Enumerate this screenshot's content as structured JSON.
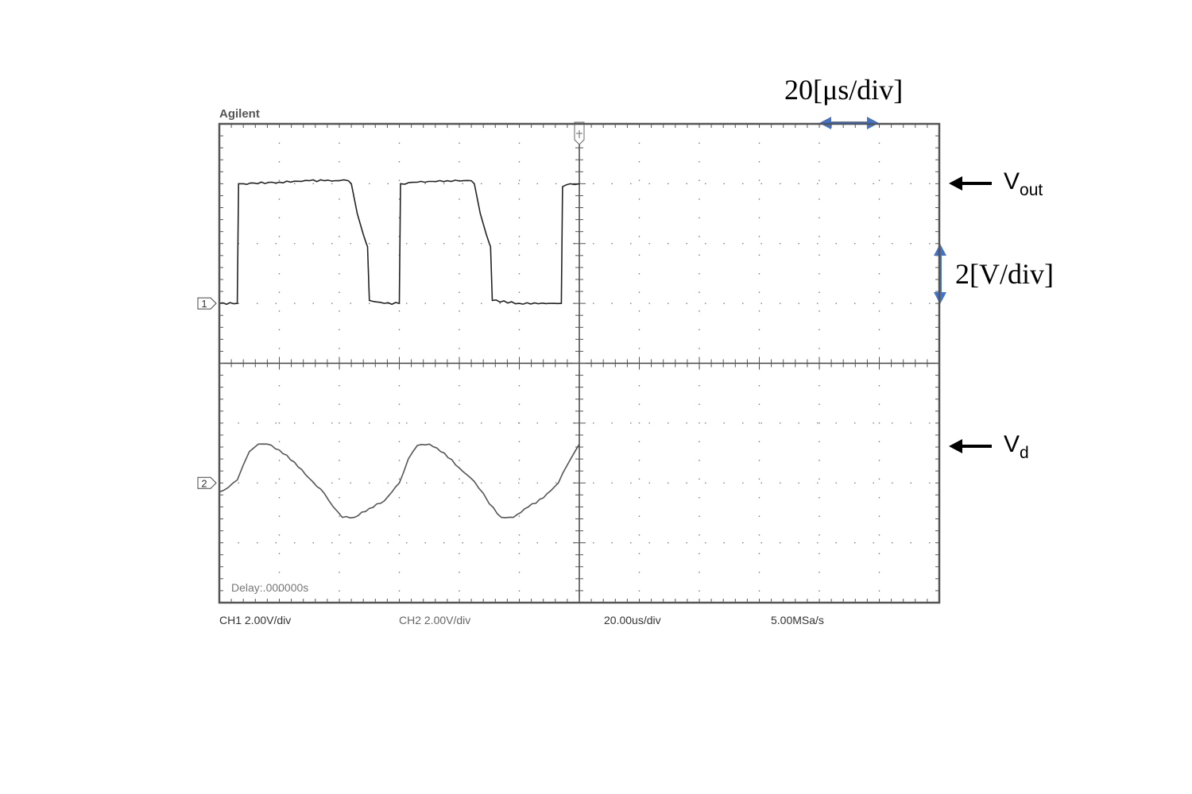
{
  "chart_data": {
    "type": "line",
    "brand": "Agilent",
    "grid": {
      "divisions_x": 12,
      "divisions_y": 8
    },
    "time_per_div_us": 20,
    "channels": [
      {
        "id": "CH1",
        "marker": "1",
        "scale_label": "CH1 2.00V/div",
        "volts_per_div": 2,
        "ground_div_from_top": 3,
        "trace_color": "#222222",
        "points": [
          [
            0,
            0.0
          ],
          [
            6,
            0.0
          ],
          [
            6.4,
            4.0
          ],
          [
            8,
            4.0
          ],
          [
            20,
            4.05
          ],
          [
            30,
            4.1
          ],
          [
            35,
            4.1
          ],
          [
            40,
            4.1
          ],
          [
            43,
            4.1
          ],
          [
            44,
            4.0
          ],
          [
            46,
            3.0
          ],
          [
            48,
            2.3
          ],
          [
            49,
            2.0
          ],
          [
            49.4,
            1.9
          ],
          [
            50,
            0.1
          ],
          [
            55,
            0.0
          ],
          [
            60,
            0.0
          ],
          [
            60.4,
            4.0
          ],
          [
            66,
            4.05
          ],
          [
            76,
            4.1
          ],
          [
            84,
            4.1
          ],
          [
            85,
            4.0
          ],
          [
            87,
            3.0
          ],
          [
            89,
            2.3
          ],
          [
            90,
            2.0
          ],
          [
            90.4,
            1.9
          ],
          [
            91,
            0.1
          ],
          [
            100,
            0.0
          ],
          [
            114,
            0.0
          ],
          [
            114.4,
            3.9
          ],
          [
            117,
            4.0
          ],
          [
            120,
            4.0
          ]
        ]
      },
      {
        "id": "CH2",
        "marker": "2",
        "scale_label": "CH2 2.00V/div",
        "volts_per_div": 2,
        "ground_div_from_top": 6,
        "trace_color": "#555555",
        "points": [
          [
            0,
            -0.3
          ],
          [
            3,
            -0.15
          ],
          [
            6,
            0.1
          ],
          [
            8,
            0.6
          ],
          [
            10,
            1.05
          ],
          [
            13,
            1.3
          ],
          [
            16,
            1.3
          ],
          [
            20,
            1.1
          ],
          [
            25,
            0.7
          ],
          [
            30,
            0.15
          ],
          [
            35,
            -0.35
          ],
          [
            38,
            -0.8
          ],
          [
            41,
            -1.15
          ],
          [
            45,
            -1.15
          ],
          [
            50,
            -0.85
          ],
          [
            55,
            -0.6
          ],
          [
            60,
            0.0
          ],
          [
            63,
            0.8
          ],
          [
            66,
            1.25
          ],
          [
            70,
            1.3
          ],
          [
            75,
            1.0
          ],
          [
            80,
            0.5
          ],
          [
            85,
            0.05
          ],
          [
            88,
            -0.35
          ],
          [
            90,
            -0.7
          ],
          [
            94,
            -1.15
          ],
          [
            98,
            -1.15
          ],
          [
            103,
            -0.8
          ],
          [
            108,
            -0.5
          ],
          [
            113,
            0.0
          ],
          [
            116,
            0.6
          ],
          [
            120,
            1.3
          ]
        ]
      }
    ],
    "annotations": {
      "time_scale": "20[μs/div]",
      "volt_scale": "2[V/div]",
      "vout_main": "V",
      "vout_sub": "out",
      "vd_main": "V",
      "vd_sub": "d"
    },
    "colors": {
      "accent_arrow": "#4472C4",
      "label_arrow": "#000000",
      "grid": "#777777",
      "frame": "#555555"
    }
  },
  "status_bar": {
    "ch1": "CH1 2.00V/div",
    "ch2": "CH2 2.00V/div",
    "timebase": "20.00us/div",
    "sample_rate": "5.00MSa/s"
  },
  "delay": "Delay:.000000s"
}
